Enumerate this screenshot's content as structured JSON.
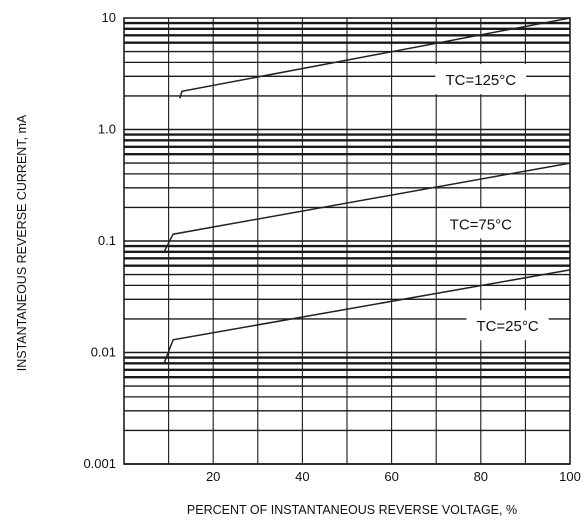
{
  "chart_data": {
    "type": "line",
    "xlabel": "PERCENT OF INSTANTANEOUS REVERSE VOLTAGE, %",
    "ylabel": "INSTANTANEOUS REVERSE CURRENT, mA",
    "y_scale": "log",
    "xlim": [
      0,
      100
    ],
    "ylim": [
      0.001,
      10
    ],
    "x_ticks": [
      {
        "value": 20,
        "label": "20"
      },
      {
        "value": 40,
        "label": "40"
      },
      {
        "value": 60,
        "label": "60"
      },
      {
        "value": 80,
        "label": "80"
      },
      {
        "value": 100,
        "label": "100"
      }
    ],
    "y_ticks": [
      {
        "value": 10,
        "label": "10"
      },
      {
        "value": 1,
        "label": "1.0"
      },
      {
        "value": 0.1,
        "label": "0.1"
      },
      {
        "value": 0.01,
        "label": "0.01"
      },
      {
        "value": 0.001,
        "label": "0.001"
      }
    ],
    "grid": true,
    "series": [
      {
        "name": "TC=125°C",
        "x": [
          12.5,
          13,
          100
        ],
        "y": [
          1.9,
          2.2,
          10
        ]
      },
      {
        "name": "TC=75°C",
        "x": [
          9,
          11,
          100
        ],
        "y": [
          0.08,
          0.115,
          0.5
        ]
      },
      {
        "name": "TC=25°C",
        "x": [
          9,
          11,
          100
        ],
        "y": [
          0.008,
          0.013,
          0.055
        ]
      }
    ],
    "colors": {
      "line": "#222222",
      "grid": "#1a1a1a",
      "background": "#ffffff"
    }
  }
}
